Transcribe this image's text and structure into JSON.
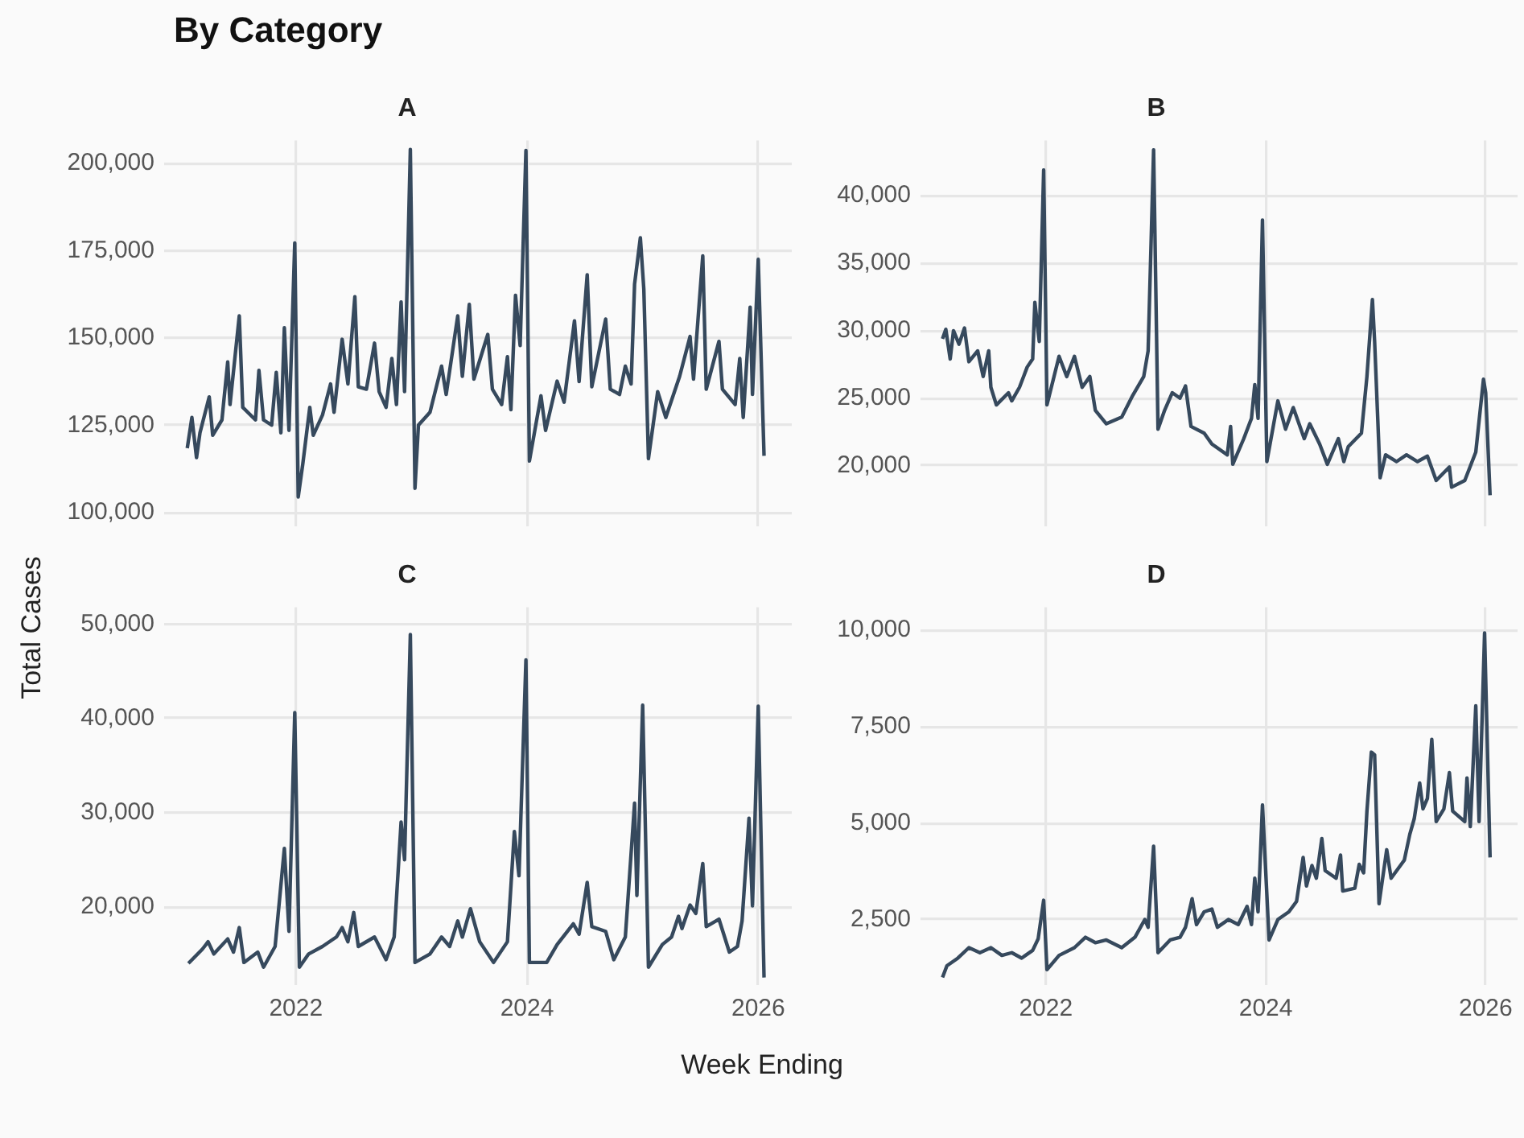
{
  "chart_data": [
    {
      "type": "line",
      "title": "A",
      "ylabel": "Total Cases",
      "annotations": [
        "By Category"
      ],
      "xlim": [
        2020.86,
        2026.29
      ],
      "xticks": [
        2022,
        2024,
        2026
      ],
      "ylim": [
        96000,
        206600
      ],
      "yticks": [
        {
          "value": 100000,
          "label": "100,000"
        },
        {
          "value": 125000,
          "label": "125,000"
        },
        {
          "value": 150000,
          "label": "150,000"
        },
        {
          "value": 175000,
          "label": "175,000"
        },
        {
          "value": 200000,
          "label": "200,000"
        }
      ],
      "grid": true,
      "marker": "none",
      "tick_labels": "y",
      "series": [
        {
          "color": "#36495d",
          "x": [
            2021.06,
            2021.1,
            2021.14,
            2021.17,
            2021.25,
            2021.28,
            2021.36,
            2021.41,
            2021.43,
            2021.51,
            2021.54,
            2021.65,
            2021.68,
            2021.72,
            2021.79,
            2021.83,
            2021.87,
            2021.9,
            2021.94,
            2021.99,
            2022.02,
            2022.06,
            2022.12,
            2022.15,
            2022.23,
            2022.3,
            2022.33,
            2022.4,
            2022.45,
            2022.51,
            2022.54,
            2022.61,
            2022.68,
            2022.72,
            2022.78,
            2022.83,
            2022.87,
            2022.91,
            2022.94,
            2022.99,
            2023.03,
            2023.06,
            2023.16,
            2023.26,
            2023.3,
            2023.4,
            2023.44,
            2023.5,
            2023.54,
            2023.66,
            2023.7,
            2023.78,
            2023.83,
            2023.86,
            2023.9,
            2023.94,
            2023.99,
            2024.02,
            2024.12,
            2024.16,
            2024.26,
            2024.32,
            2024.41,
            2024.45,
            2024.52,
            2024.56,
            2024.68,
            2024.72,
            2024.8,
            2024.85,
            2024.9,
            2024.93,
            2024.98,
            2025.01,
            2025.05,
            2025.13,
            2025.2,
            2025.32,
            2025.41,
            2025.44,
            2025.52,
            2025.55,
            2025.66,
            2025.69,
            2025.8,
            2025.84,
            2025.87,
            2025.93,
            2025.95,
            2026.0,
            2026.05
          ],
          "values": [
            118400,
            127200,
            115700,
            122800,
            133100,
            122100,
            126500,
            143100,
            130900,
            156300,
            130100,
            126500,
            140700,
            126500,
            125000,
            140100,
            122800,
            152900,
            123500,
            177200,
            104400,
            114000,
            130100,
            122100,
            127900,
            136800,
            128700,
            149600,
            136800,
            161800,
            136000,
            135300,
            148500,
            134600,
            130100,
            144100,
            130900,
            160300,
            134600,
            204000,
            106900,
            125000,
            128700,
            141900,
            133800,
            156300,
            139000,
            159600,
            138200,
            151000,
            135300,
            130900,
            144600,
            129400,
            162200,
            147800,
            203700,
            114700,
            133400,
            123500,
            137600,
            131600,
            154900,
            137500,
            168100,
            136000,
            155400,
            135300,
            133800,
            141900,
            136800,
            165400,
            178700,
            164000,
            115400,
            134600,
            127200,
            139000,
            150400,
            138200,
            173500,
            135300,
            149000,
            135300,
            130900,
            144100,
            127200,
            158800,
            133800,
            172500,
            116200
          ]
        }
      ]
    },
    {
      "type": "line",
      "title": "B",
      "xlim": [
        2020.86,
        2026.29
      ],
      "xticks": [
        2022,
        2024,
        2026
      ],
      "ylim": [
        15500,
        44100
      ],
      "yticks": [
        {
          "value": 20000,
          "label": "20,000"
        },
        {
          "value": 25000,
          "label": "25,000"
        },
        {
          "value": 30000,
          "label": "30,000"
        },
        {
          "value": 35000,
          "label": "35,000"
        },
        {
          "value": 40000,
          "label": "40,000"
        }
      ],
      "grid": true,
      "marker": "none",
      "tick_labels": "y",
      "series": [
        {
          "color": "#36495d",
          "x": [
            2021.06,
            2021.09,
            2021.13,
            2021.16,
            2021.21,
            2021.26,
            2021.3,
            2021.38,
            2021.43,
            2021.48,
            2021.5,
            2021.55,
            2021.66,
            2021.69,
            2021.76,
            2021.83,
            2021.88,
            2021.9,
            2021.94,
            2021.98,
            2022.01,
            2022.12,
            2022.19,
            2022.26,
            2022.33,
            2022.4,
            2022.45,
            2022.55,
            2022.69,
            2022.79,
            2022.89,
            2022.93,
            2022.98,
            2023.02,
            2023.08,
            2023.15,
            2023.22,
            2023.27,
            2023.32,
            2023.44,
            2023.51,
            2023.65,
            2023.68,
            2023.7,
            2023.8,
            2023.87,
            2023.9,
            2023.93,
            2023.97,
            2024.01,
            2024.11,
            2024.18,
            2024.25,
            2024.35,
            2024.4,
            2024.49,
            2024.56,
            2024.66,
            2024.71,
            2024.75,
            2024.87,
            2024.92,
            2024.97,
            2024.99,
            2025.04,
            2025.09,
            2025.19,
            2025.28,
            2025.38,
            2025.47,
            2025.55,
            2025.67,
            2025.69,
            2025.81,
            2025.91,
            2025.98,
            2026.0,
            2026.04
          ],
          "values": [
            29400,
            30100,
            27900,
            30000,
            29000,
            30200,
            27700,
            28500,
            26600,
            28500,
            25800,
            24500,
            25400,
            24800,
            25800,
            27300,
            27900,
            32100,
            29200,
            41900,
            24500,
            28100,
            26600,
            28100,
            25800,
            26600,
            24100,
            23100,
            23600,
            25200,
            26600,
            28500,
            43400,
            22700,
            24100,
            25400,
            25000,
            25900,
            22900,
            22400,
            21600,
            20800,
            22900,
            20100,
            22000,
            23500,
            26000,
            23500,
            38200,
            20300,
            24800,
            22700,
            24300,
            22000,
            23100,
            21600,
            20100,
            22000,
            20300,
            21400,
            22400,
            26600,
            32300,
            29200,
            19100,
            20800,
            20300,
            20800,
            20300,
            20700,
            18900,
            19900,
            18400,
            18900,
            21000,
            26400,
            25400,
            17800
          ]
        }
      ]
    },
    {
      "type": "line",
      "title": "C",
      "xlabel": "Week Ending",
      "xlim": [
        2020.86,
        2026.29
      ],
      "xticks": [
        2022,
        2024,
        2026
      ],
      "ylim": [
        11700,
        51800
      ],
      "yticks": [
        {
          "value": 20000,
          "label": "20,000"
        },
        {
          "value": 30000,
          "label": "30,000"
        },
        {
          "value": 40000,
          "label": "40,000"
        },
        {
          "value": 50000,
          "label": "50,000"
        }
      ],
      "grid": true,
      "marker": "none",
      "series": [
        {
          "color": "#36495d",
          "x": [
            2021.07,
            2021.19,
            2021.24,
            2021.29,
            2021.41,
            2021.46,
            2021.51,
            2021.55,
            2021.67,
            2021.72,
            2021.82,
            2021.9,
            2021.94,
            2021.99,
            2022.03,
            2022.11,
            2022.23,
            2022.35,
            2022.4,
            2022.45,
            2022.5,
            2022.54,
            2022.68,
            2022.78,
            2022.85,
            2022.91,
            2022.94,
            2022.99,
            2023.03,
            2023.16,
            2023.26,
            2023.33,
            2023.4,
            2023.44,
            2023.51,
            2023.59,
            2023.71,
            2023.83,
            2023.89,
            2023.93,
            2023.99,
            2024.02,
            2024.17,
            2024.26,
            2024.4,
            2024.45,
            2024.52,
            2024.56,
            2024.68,
            2024.75,
            2024.85,
            2024.93,
            2024.95,
            2025.0,
            2025.05,
            2025.17,
            2025.25,
            2025.31,
            2025.34,
            2025.41,
            2025.46,
            2025.52,
            2025.55,
            2025.66,
            2025.75,
            2025.82,
            2025.86,
            2025.92,
            2025.95,
            2026.0,
            2026.05
          ],
          "values": [
            14000,
            15500,
            16300,
            15000,
            16600,
            15200,
            17800,
            14100,
            15200,
            13600,
            15800,
            26200,
            17400,
            40600,
            13600,
            15000,
            15800,
            16800,
            17800,
            16300,
            19400,
            15800,
            16800,
            14400,
            16800,
            29000,
            25000,
            48900,
            14100,
            15000,
            16800,
            15800,
            18500,
            16800,
            19800,
            16300,
            14100,
            16300,
            28000,
            23300,
            46200,
            14100,
            14100,
            16000,
            18200,
            17100,
            22600,
            17900,
            17400,
            14400,
            16800,
            31000,
            21200,
            41400,
            13600,
            16000,
            16800,
            19000,
            17700,
            20200,
            19300,
            24600,
            17900,
            18700,
            15200,
            15800,
            18500,
            29400,
            20100,
            41300,
            12500
          ]
        }
      ]
    },
    {
      "type": "line",
      "title": "D",
      "xlim": [
        2020.86,
        2026.29
      ],
      "xticks": [
        2022,
        2024,
        2026
      ],
      "ylim": [
        800,
        10600
      ],
      "yticks": [
        {
          "value": 2500,
          "label": "2,500"
        },
        {
          "value": 5000,
          "label": "5,000"
        },
        {
          "value": 7500,
          "label": "7,500"
        },
        {
          "value": 10000,
          "label": "10,000"
        }
      ],
      "grid": true,
      "marker": "none",
      "series": [
        {
          "color": "#36495d",
          "x": [
            2021.06,
            2021.1,
            2021.2,
            2021.3,
            2021.4,
            2021.5,
            2021.6,
            2021.69,
            2021.78,
            2021.88,
            2021.93,
            2021.98,
            2022.01,
            2022.12,
            2022.26,
            2022.36,
            2022.45,
            2022.55,
            2022.69,
            2022.81,
            2022.9,
            2022.93,
            2022.98,
            2023.02,
            2023.13,
            2023.22,
            2023.27,
            2023.33,
            2023.37,
            2023.44,
            2023.51,
            2023.56,
            2023.66,
            2023.75,
            2023.83,
            2023.87,
            2023.9,
            2023.93,
            2023.97,
            2024.03,
            2024.11,
            2024.21,
            2024.28,
            2024.34,
            2024.37,
            2024.42,
            2024.46,
            2024.51,
            2024.54,
            2024.64,
            2024.68,
            2024.7,
            2024.81,
            2024.85,
            2024.89,
            2024.92,
            2024.96,
            2024.99,
            2025.03,
            2025.1,
            2025.14,
            2025.26,
            2025.31,
            2025.35,
            2025.4,
            2025.43,
            2025.47,
            2025.51,
            2025.55,
            2025.62,
            2025.67,
            2025.7,
            2025.81,
            2025.83,
            2025.86,
            2025.91,
            2025.94,
            2025.99,
            2026.04
          ],
          "values": [
            1000,
            1300,
            1500,
            1770,
            1640,
            1770,
            1570,
            1640,
            1500,
            1700,
            2000,
            3000,
            1200,
            1570,
            1770,
            2040,
            1900,
            1970,
            1770,
            2040,
            2500,
            2300,
            4400,
            1640,
            1970,
            2040,
            2300,
            3040,
            2370,
            2700,
            2770,
            2300,
            2500,
            2370,
            2840,
            2370,
            3570,
            2700,
            5470,
            1970,
            2500,
            2700,
            2970,
            4110,
            3370,
            3900,
            3570,
            4600,
            3770,
            3570,
            4170,
            3240,
            3310,
            3930,
            3710,
            5310,
            6840,
            6770,
            2910,
            4310,
            3570,
            4040,
            4710,
            5110,
            6040,
            5370,
            5640,
            7170,
            5040,
            5370,
            6310,
            5310,
            5040,
            6170,
            4910,
            8040,
            5040,
            9930,
            4110
          ]
        }
      ]
    }
  ]
}
